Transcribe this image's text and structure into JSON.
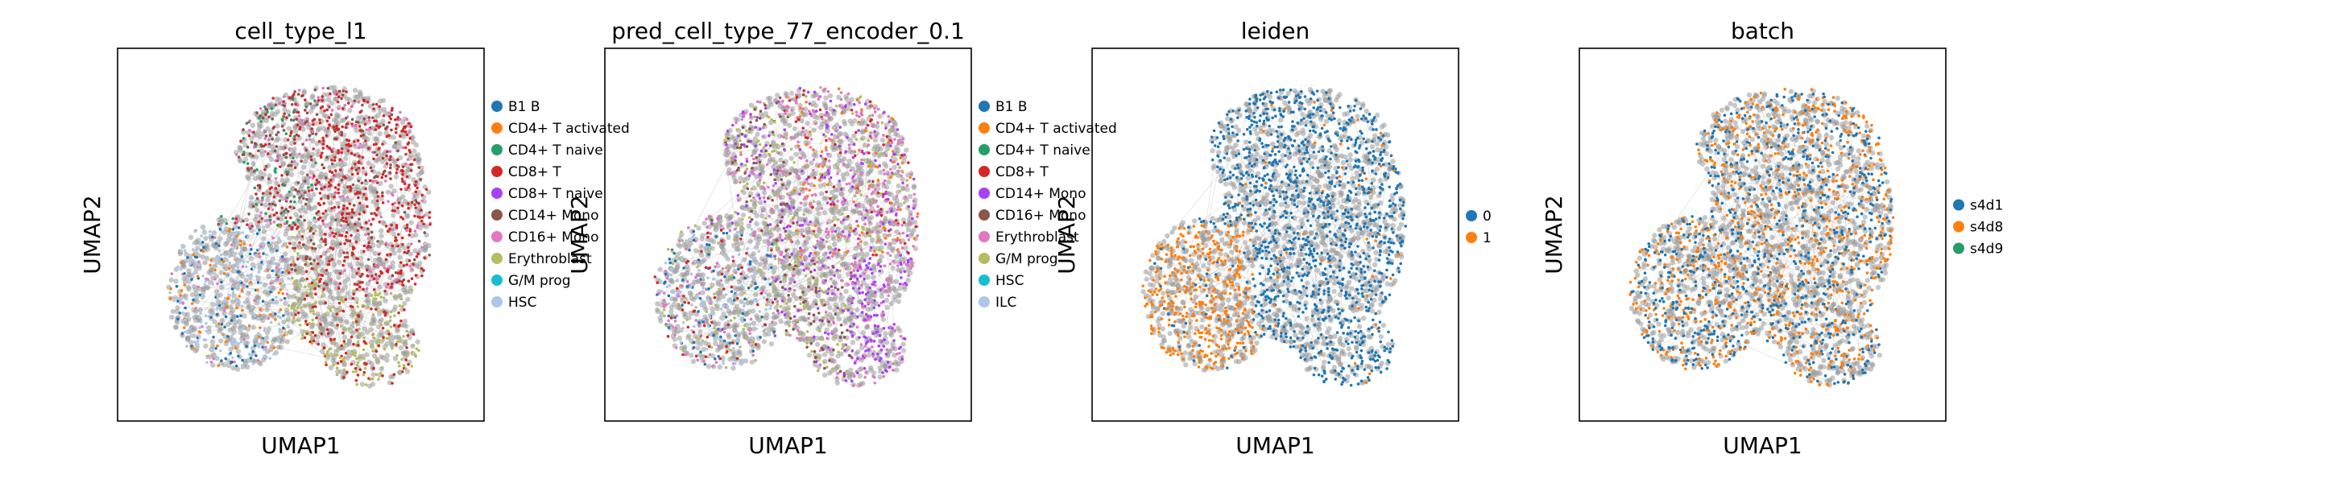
{
  "figure": {
    "type": "umap-panels"
  },
  "chart_data": [
    {
      "type": "scatter",
      "title": "cell_type_l1",
      "xlabel": "UMAP1",
      "ylabel": "UMAP2",
      "legend_position": "right",
      "legend": [
        {
          "label": "B1 B",
          "color": "#1f77b4"
        },
        {
          "label": "CD4+ T activated",
          "color": "#ff7f0e"
        },
        {
          "label": "CD4+ T naive",
          "color": "#279e68"
        },
        {
          "label": "CD8+ T",
          "color": "#d62728"
        },
        {
          "label": "CD8+ T naive",
          "color": "#aa40fc"
        },
        {
          "label": "CD14+ Mono",
          "color": "#8c564b"
        },
        {
          "label": "CD16+ Mono",
          "color": "#e377c2"
        },
        {
          "label": "Erythroblast",
          "color": "#b5bd61"
        },
        {
          "label": "G/M prog",
          "color": "#17becf"
        },
        {
          "label": "HSC",
          "color": "#aec7e8"
        }
      ]
    },
    {
      "type": "scatter",
      "title": "pred_cell_type_77_encoder_0.1",
      "xlabel": "UMAP1",
      "ylabel": "UMAP2",
      "legend_position": "right",
      "legend": [
        {
          "label": "B1 B",
          "color": "#1f77b4"
        },
        {
          "label": "CD4+ T activated",
          "color": "#ff7f0e"
        },
        {
          "label": "CD4+ T naive",
          "color": "#279e68"
        },
        {
          "label": "CD8+ T",
          "color": "#d62728"
        },
        {
          "label": "CD14+ Mono",
          "color": "#aa40fc"
        },
        {
          "label": "CD16+ Mono",
          "color": "#8c564b"
        },
        {
          "label": "Erythroblast",
          "color": "#e377c2"
        },
        {
          "label": "G/M prog",
          "color": "#b5bd61"
        },
        {
          "label": "HSC",
          "color": "#17becf"
        },
        {
          "label": "ILC",
          "color": "#aec7e8"
        }
      ]
    },
    {
      "type": "scatter",
      "title": "leiden",
      "xlabel": "UMAP1",
      "ylabel": "UMAP2",
      "legend_position": "right",
      "legend": [
        {
          "label": "0",
          "color": "#1f77b4"
        },
        {
          "label": "1",
          "color": "#ff7f0e"
        }
      ]
    },
    {
      "type": "scatter",
      "title": "batch",
      "xlabel": "UMAP1",
      "ylabel": "UMAP2",
      "legend_position": "right",
      "legend": [
        {
          "label": "s4d1",
          "color": "#1f77b4"
        },
        {
          "label": "s4d8",
          "color": "#ff7f0e"
        },
        {
          "label": "s4d9",
          "color": "#279e68"
        }
      ]
    }
  ]
}
